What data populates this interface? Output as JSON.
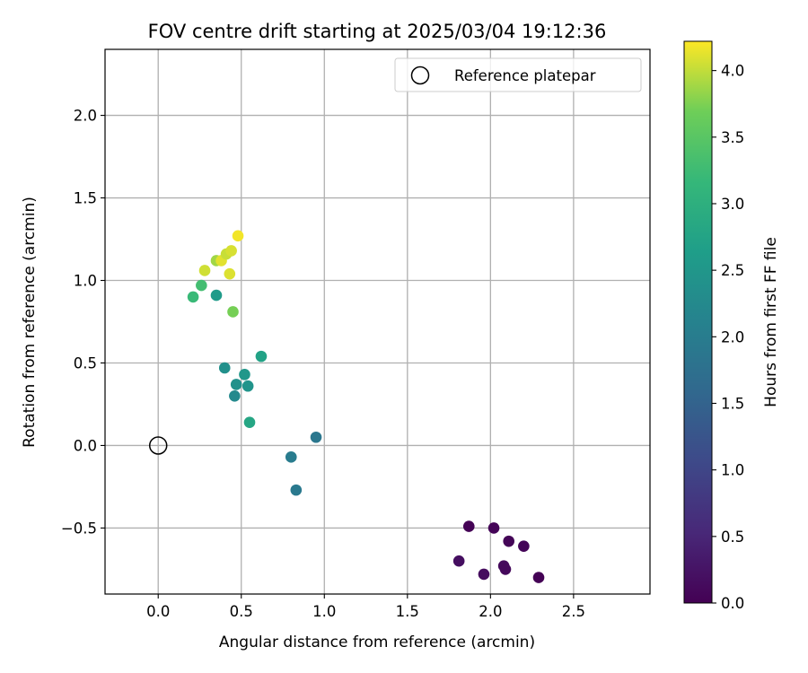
{
  "chart_data": {
    "type": "scatter",
    "title": "FOV centre drift starting at 2025/03/04 19:12:36",
    "xlabel": "Angular distance from reference (arcmin)",
    "ylabel": "Rotation from reference (arcmin)",
    "xlim": [
      -0.32,
      2.96
    ],
    "ylim": [
      -0.9,
      2.4
    ],
    "xticks": [
      0.0,
      0.5,
      1.0,
      1.5,
      2.0,
      2.5
    ],
    "xtick_labels": [
      "0.0",
      "0.5",
      "1.0",
      "1.5",
      "2.0",
      "2.5"
    ],
    "yticks": [
      -0.5,
      0.0,
      0.5,
      1.0,
      1.5,
      2.0
    ],
    "ytick_labels": [
      "−0.5",
      "0.0",
      "0.5",
      "1.0",
      "1.5",
      "2.0"
    ],
    "grid": true,
    "legend": {
      "position": "top-right",
      "entries": [
        {
          "label": "Reference platepar",
          "marker": "open-circle"
        }
      ]
    },
    "reference_point": {
      "name": "Reference platepar",
      "x": 0.0,
      "y": 0.0
    },
    "colorbar": {
      "label": "Hours from first FF file",
      "colormap": "viridis",
      "range": [
        0.0,
        4.22
      ],
      "ticks": [
        0.0,
        0.5,
        1.0,
        1.5,
        2.0,
        2.5,
        3.0,
        3.5,
        4.0
      ],
      "tick_labels": [
        "0.0",
        "0.5",
        "1.0",
        "1.5",
        "2.0",
        "2.5",
        "3.0",
        "3.5",
        "4.0"
      ]
    },
    "points": [
      {
        "x": 1.87,
        "y": -0.49,
        "hours": 0.02
      },
      {
        "x": 2.02,
        "y": -0.5,
        "hours": 0.04
      },
      {
        "x": 2.11,
        "y": -0.58,
        "hours": 0.05
      },
      {
        "x": 2.2,
        "y": -0.61,
        "hours": 0.06
      },
      {
        "x": 2.29,
        "y": -0.8,
        "hours": 0.02
      },
      {
        "x": 2.08,
        "y": -0.73,
        "hours": 0.12
      },
      {
        "x": 2.09,
        "y": -0.75,
        "hours": 0.1
      },
      {
        "x": 1.96,
        "y": -0.78,
        "hours": 0.15
      },
      {
        "x": 1.81,
        "y": -0.7,
        "hours": 0.18
      },
      {
        "x": 0.95,
        "y": 0.05,
        "hours": 1.88
      },
      {
        "x": 0.8,
        "y": -0.07,
        "hours": 1.98
      },
      {
        "x": 0.83,
        "y": -0.27,
        "hours": 1.93
      },
      {
        "x": 0.46,
        "y": 0.3,
        "hours": 2.25
      },
      {
        "x": 0.47,
        "y": 0.37,
        "hours": 2.4
      },
      {
        "x": 0.54,
        "y": 0.36,
        "hours": 2.45
      },
      {
        "x": 0.52,
        "y": 0.43,
        "hours": 2.5
      },
      {
        "x": 0.4,
        "y": 0.47,
        "hours": 2.38
      },
      {
        "x": 0.55,
        "y": 0.14,
        "hours": 2.8
      },
      {
        "x": 0.62,
        "y": 0.54,
        "hours": 2.72
      },
      {
        "x": 0.35,
        "y": 0.91,
        "hours": 2.58
      },
      {
        "x": 0.21,
        "y": 0.9,
        "hours": 3.2
      },
      {
        "x": 0.26,
        "y": 0.97,
        "hours": 3.3
      },
      {
        "x": 0.45,
        "y": 0.81,
        "hours": 3.72
      },
      {
        "x": 0.28,
        "y": 1.06,
        "hours": 4.05
      },
      {
        "x": 0.43,
        "y": 1.04,
        "hours": 4.1
      },
      {
        "x": 0.35,
        "y": 1.12,
        "hours": 3.88
      },
      {
        "x": 0.38,
        "y": 1.12,
        "hours": 4.12
      },
      {
        "x": 0.41,
        "y": 1.16,
        "hours": 4.02
      },
      {
        "x": 0.44,
        "y": 1.18,
        "hours": 4.08
      },
      {
        "x": 0.48,
        "y": 1.27,
        "hours": 4.18
      }
    ]
  }
}
